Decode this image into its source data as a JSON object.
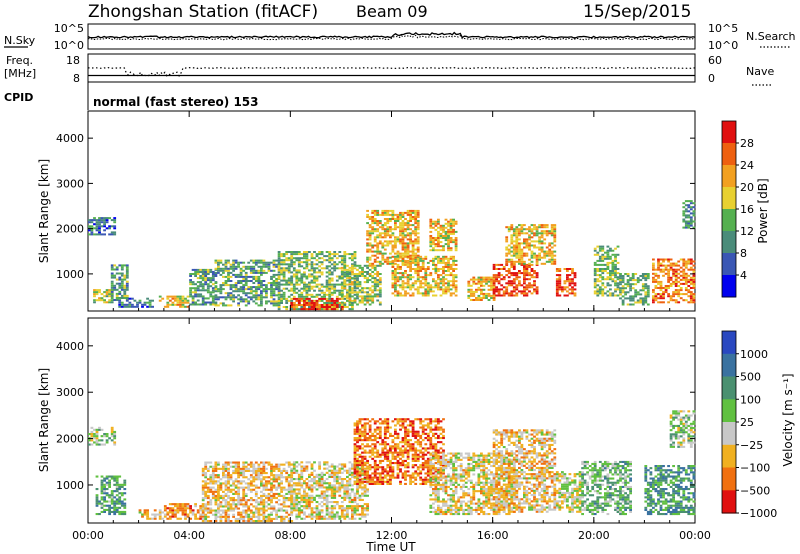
{
  "header": {
    "station": "Zhongshan Station (fitACF)",
    "beam": "Beam 09",
    "date": "15/Sep/2015"
  },
  "top_panels": {
    "nsky": {
      "label": "N.Sky",
      "ticks": [
        "10^5",
        "10^0"
      ]
    },
    "nsearch": {
      "label": "N.Search",
      "ticks": [
        "10^5",
        "10^0"
      ]
    },
    "freq": {
      "label_line1": "Freq.",
      "label_line2": "[MHz]",
      "ticks": [
        "18",
        "8"
      ]
    },
    "nave": {
      "label": "Nave",
      "ticks": [
        "60",
        "0"
      ]
    },
    "cpid": {
      "label": "CPID",
      "value": "normal (fast stereo) 153"
    }
  },
  "x_axis": {
    "label": "Time UT",
    "ticks": [
      "00:00",
      "04:00",
      "08:00",
      "12:00",
      "16:00",
      "20:00",
      "00:00"
    ]
  },
  "power_colorbar": {
    "label": "Power [dB]",
    "ticks": [
      "28",
      "24",
      "20",
      "16",
      "12",
      "8",
      "4"
    ],
    "colors": [
      "#0000ee",
      "#3a57b4",
      "#4a8c7a",
      "#55b050",
      "#e8d030",
      "#f2a020",
      "#ee6010",
      "#e01010"
    ]
  },
  "velocity_colorbar": {
    "label": "Velocity [m s⁻¹]",
    "ticks": [
      "1000",
      "500",
      "100",
      "25",
      "−25",
      "−100",
      "−500",
      "−1000"
    ],
    "colors": [
      "#2a48c0",
      "#3a72a0",
      "#4a9070",
      "#60c040",
      "#c8c8c8",
      "#f0b020",
      "#f07010",
      "#e01010"
    ]
  },
  "chart_data": [
    {
      "type": "heatmap",
      "title": "",
      "xlabel": "Time UT",
      "ylabel": "Slant Range [km]",
      "xlim": [
        0,
        24
      ],
      "ylim": [
        180,
        4600
      ],
      "yticks": [
        1000,
        2000,
        3000,
        4000
      ],
      "zlabel": "Power [dB]",
      "zlim": [
        0,
        32
      ],
      "regions": [
        {
          "t": [
            0.0,
            1.0
          ],
          "r": [
            1850,
            2250
          ],
          "z": 8
        },
        {
          "t": [
            0.2,
            0.9
          ],
          "r": [
            350,
            650
          ],
          "z": 16
        },
        {
          "t": [
            0.9,
            1.6
          ],
          "r": [
            400,
            1200
          ],
          "z": 12
        },
        {
          "t": [
            1.2,
            2.6
          ],
          "r": [
            250,
            450
          ],
          "z": 8
        },
        {
          "t": [
            2.8,
            4.0
          ],
          "r": [
            250,
            500
          ],
          "z": 20
        },
        {
          "t": [
            4.0,
            5.0
          ],
          "r": [
            300,
            1100
          ],
          "z": 12
        },
        {
          "t": [
            5.0,
            7.5
          ],
          "r": [
            280,
            1300
          ],
          "z": 12
        },
        {
          "t": [
            7.5,
            10.5
          ],
          "r": [
            200,
            1500
          ],
          "z": 14
        },
        {
          "t": [
            8.0,
            10.0
          ],
          "r": [
            200,
            450
          ],
          "z": 28
        },
        {
          "t": [
            10.0,
            11.5
          ],
          "r": [
            300,
            1200
          ],
          "z": 16
        },
        {
          "t": [
            11.0,
            13.0
          ],
          "r": [
            1200,
            2400
          ],
          "z": 20
        },
        {
          "t": [
            12.0,
            14.5
          ],
          "r": [
            500,
            1400
          ],
          "z": 20
        },
        {
          "t": [
            13.5,
            14.5
          ],
          "r": [
            1500,
            2200
          ],
          "z": 20
        },
        {
          "t": [
            15.0,
            16.0
          ],
          "r": [
            400,
            900
          ],
          "z": 20
        },
        {
          "t": [
            16.0,
            17.8
          ],
          "r": [
            500,
            1200
          ],
          "z": 28
        },
        {
          "t": [
            16.5,
            18.5
          ],
          "r": [
            1200,
            2100
          ],
          "z": 20
        },
        {
          "t": [
            18.5,
            19.3
          ],
          "r": [
            500,
            1100
          ],
          "z": 26
        },
        {
          "t": [
            20.0,
            21.0
          ],
          "r": [
            500,
            1600
          ],
          "z": 14
        },
        {
          "t": [
            21.0,
            22.2
          ],
          "r": [
            300,
            1000
          ],
          "z": 14
        },
        {
          "t": [
            22.3,
            24.0
          ],
          "r": [
            350,
            1300
          ],
          "z": 24
        },
        {
          "t": [
            23.5,
            24.0
          ],
          "r": [
            2000,
            2600
          ],
          "z": 10
        }
      ]
    },
    {
      "type": "heatmap",
      "title": "",
      "xlabel": "Time UT",
      "ylabel": "Slant Range [km]",
      "xlim": [
        0,
        24
      ],
      "ylim": [
        180,
        4600
      ],
      "yticks": [
        1000,
        2000,
        3000,
        4000
      ],
      "zlabel": "Velocity [m s⁻¹]",
      "zlim": [
        -1000,
        1000
      ],
      "regions": [
        {
          "t": [
            0.0,
            1.0
          ],
          "r": [
            1850,
            2250
          ],
          "z": 0
        },
        {
          "t": [
            0.3,
            1.5
          ],
          "r": [
            350,
            1200
          ],
          "z": 300
        },
        {
          "t": [
            2.0,
            3.0
          ],
          "r": [
            250,
            450
          ],
          "z": -300
        },
        {
          "t": [
            3.0,
            4.5
          ],
          "r": [
            250,
            600
          ],
          "z": -500
        },
        {
          "t": [
            4.5,
            8.0
          ],
          "r": [
            200,
            1500
          ],
          "z": -300
        },
        {
          "t": [
            8.0,
            11.0
          ],
          "r": [
            250,
            1500
          ],
          "z": -200
        },
        {
          "t": [
            10.5,
            14.0
          ],
          "r": [
            1000,
            2400
          ],
          "z": -600
        },
        {
          "t": [
            13.5,
            17.0
          ],
          "r": [
            350,
            1700
          ],
          "z": -200
        },
        {
          "t": [
            16.0,
            18.5
          ],
          "r": [
            400,
            2200
          ],
          "z": -300
        },
        {
          "t": [
            18.5,
            19.5
          ],
          "r": [
            400,
            1300
          ],
          "z": -100
        },
        {
          "t": [
            19.5,
            21.5
          ],
          "r": [
            350,
            1500
          ],
          "z": 200
        },
        {
          "t": [
            22.0,
            24.0
          ],
          "r": [
            350,
            1400
          ],
          "z": 400
        },
        {
          "t": [
            23.0,
            24.0
          ],
          "r": [
            1800,
            2600
          ],
          "z": 0
        }
      ]
    }
  ]
}
